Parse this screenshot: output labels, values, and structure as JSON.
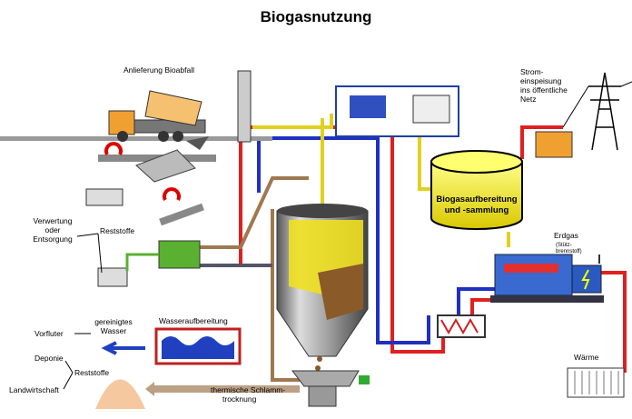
{
  "title": "Biogasnutzung",
  "labels": {
    "delivery": "Anlieferung Bioabfall",
    "power_feed": [
      "Strom-",
      "einspeisung",
      "ins öffentliche",
      "Netz"
    ],
    "gas_processing": [
      "Biogasaufbereitung",
      "und -sammlung"
    ],
    "natural_gas": "Erdgas",
    "support_fuel": [
      "(Stütz-",
      "brennstoff)"
    ],
    "recovery": [
      "Verwertung",
      "oder",
      "Entsorgung"
    ],
    "residues_top": "Reststoffe",
    "receiving_water": "Vorfluter",
    "clean_water": [
      "gereinigtes",
      "Wasser"
    ],
    "water_treatment": "Wasseraufbereitung",
    "landfill": "Deponie",
    "residues_bottom": "Reststoffe",
    "agriculture": "Landwirtschaft",
    "sludge_drying": [
      "thermische Schlamm-",
      "trocknung"
    ],
    "heat": "Wärme"
  }
}
